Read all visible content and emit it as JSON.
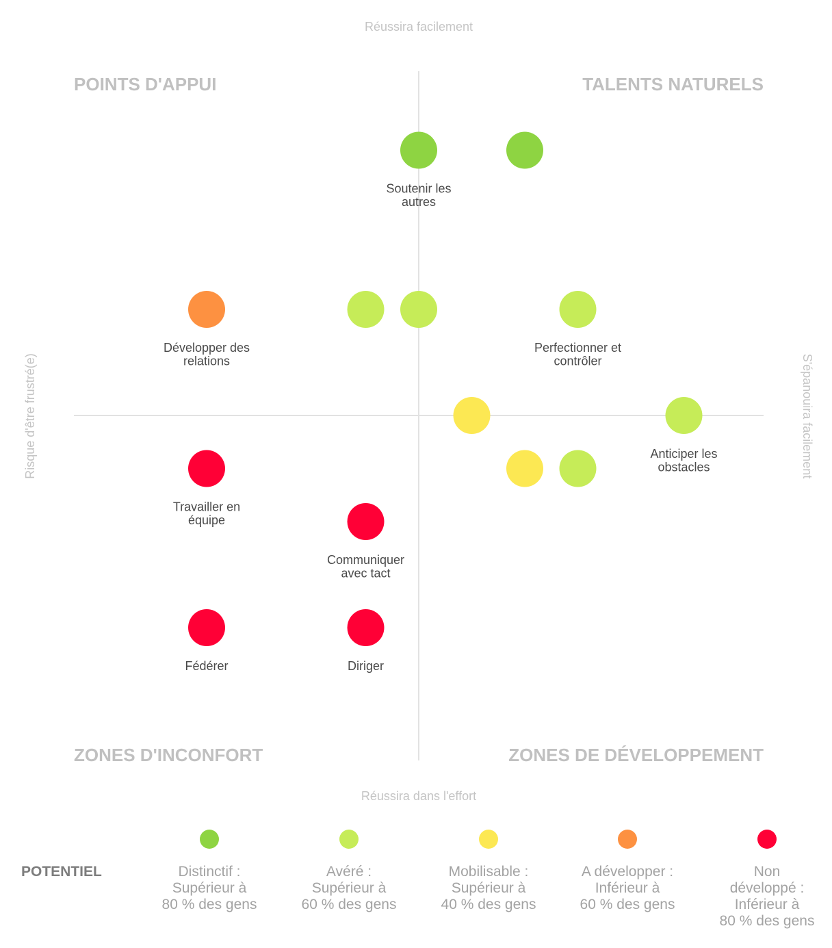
{
  "chart_data": {
    "type": "scatter",
    "axis_captions": {
      "top": "Réussira facilement",
      "bottom": "Réussira dans l'effort",
      "left": "Risque d'être frustré(e)",
      "right": "S'épanouira facilement"
    },
    "quadrants": {
      "top_left": "POINTS D'APPUI",
      "top_right": "TALENTS NATURELS",
      "bottom_left": "ZONES D'INCONFORT",
      "bottom_right": "ZONES DE DÉVELOPPEMENT"
    },
    "xlim": [
      -6.5,
      6.5
    ],
    "ylim": [
      -6.5,
      6.5
    ],
    "grid": false,
    "levels": {
      "distinctif": "#8ed442",
      "avere": "#c6ec58",
      "mobilisable": "#fce853",
      "a_developper": "#fd9141",
      "non_developpe": "#ff0036"
    },
    "points": [
      {
        "x": 0,
        "y": 5,
        "level": "distinctif",
        "label": [
          "Soutenir les",
          "autres"
        ]
      },
      {
        "x": 2,
        "y": 5,
        "level": "distinctif",
        "label": []
      },
      {
        "x": -4,
        "y": 2,
        "level": "a_developper",
        "label": [
          "Développer des",
          "relations"
        ]
      },
      {
        "x": -1,
        "y": 2,
        "level": "avere",
        "label": []
      },
      {
        "x": 0,
        "y": 2,
        "level": "avere",
        "label": []
      },
      {
        "x": 3,
        "y": 2,
        "level": "avere",
        "label": [
          "Perfectionner et",
          "contrôler"
        ]
      },
      {
        "x": 1,
        "y": 0,
        "level": "mobilisable",
        "label": []
      },
      {
        "x": 5,
        "y": 0,
        "level": "avere",
        "label": [
          "Anticiper les",
          "obstacles"
        ]
      },
      {
        "x": -4,
        "y": -1,
        "level": "non_developpe",
        "label": [
          "Travailler en",
          "équipe"
        ]
      },
      {
        "x": 2,
        "y": -1,
        "level": "mobilisable",
        "label": []
      },
      {
        "x": 3,
        "y": -1,
        "level": "avere",
        "label": []
      },
      {
        "x": -1,
        "y": -2,
        "level": "non_developpe",
        "label": [
          "Communiquer",
          "avec tact"
        ]
      },
      {
        "x": -4,
        "y": -4,
        "level": "non_developpe",
        "label": [
          "Fédérer"
        ]
      },
      {
        "x": -1,
        "y": -4,
        "level": "non_developpe",
        "label": [
          "Diriger"
        ]
      }
    ]
  },
  "legend": {
    "title": "POTENTIEL",
    "items": [
      {
        "level": "distinctif",
        "lines": [
          "Distinctif :",
          "Supérieur à",
          "80 % des gens"
        ]
      },
      {
        "level": "avere",
        "lines": [
          "Avéré :",
          "Supérieur à",
          "60 % des gens"
        ]
      },
      {
        "level": "mobilisable",
        "lines": [
          "Mobilisable :",
          "Supérieur à",
          "40 % des gens"
        ]
      },
      {
        "level": "a_developper",
        "lines": [
          "A développer :",
          "Inférieur à",
          "60 % des gens"
        ]
      },
      {
        "level": "non_developpe",
        "lines": [
          "Non",
          "développé :",
          "Inférieur à",
          "80 % des gens"
        ]
      }
    ]
  }
}
